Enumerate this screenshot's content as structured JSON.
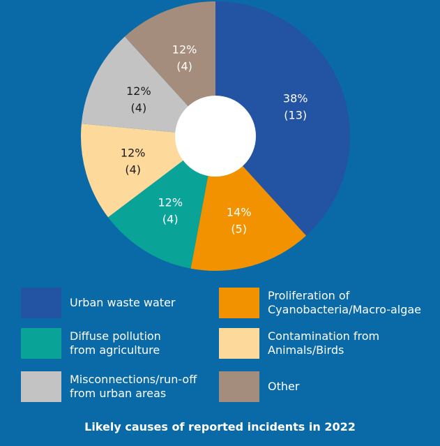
{
  "chart_data": {
    "type": "pie",
    "donut": true,
    "title": "Likely causes of reported incidents in 2022",
    "slices": [
      {
        "name": "Urban waste water",
        "percent": 38,
        "count": 13,
        "percent_label": "38%",
        "count_label": "(13)",
        "color": "#2353a3"
      },
      {
        "name": "Proliferation of\nCyanobacteria/Macro-algae",
        "percent": 14,
        "count": 5,
        "percent_label": "14%",
        "count_label": "(5)",
        "color": "#f39200"
      },
      {
        "name": "Diffuse pollution\nfrom agriculture",
        "percent": 12,
        "count": 4,
        "percent_label": "12%",
        "count_label": "(4)",
        "color": "#0aa398"
      },
      {
        "name": "Contamination from\nAnimals/Birds",
        "percent": 12,
        "count": 4,
        "percent_label": "12%",
        "count_label": "(4)",
        "color": "#fdd99b"
      },
      {
        "name": "Misconnections/run-off\nfrom urban areas",
        "percent": 12,
        "count": 4,
        "percent_label": "12%",
        "count_label": "(4)",
        "color": "#c3c3c3"
      },
      {
        "name": "Other",
        "percent": 12,
        "count": 4,
        "percent_label": "12%",
        "count_label": "(4)",
        "color": "#a48d7c"
      }
    ],
    "legend_placement": "bottom"
  },
  "caption": "Likely causes of reported incidents in 2022"
}
